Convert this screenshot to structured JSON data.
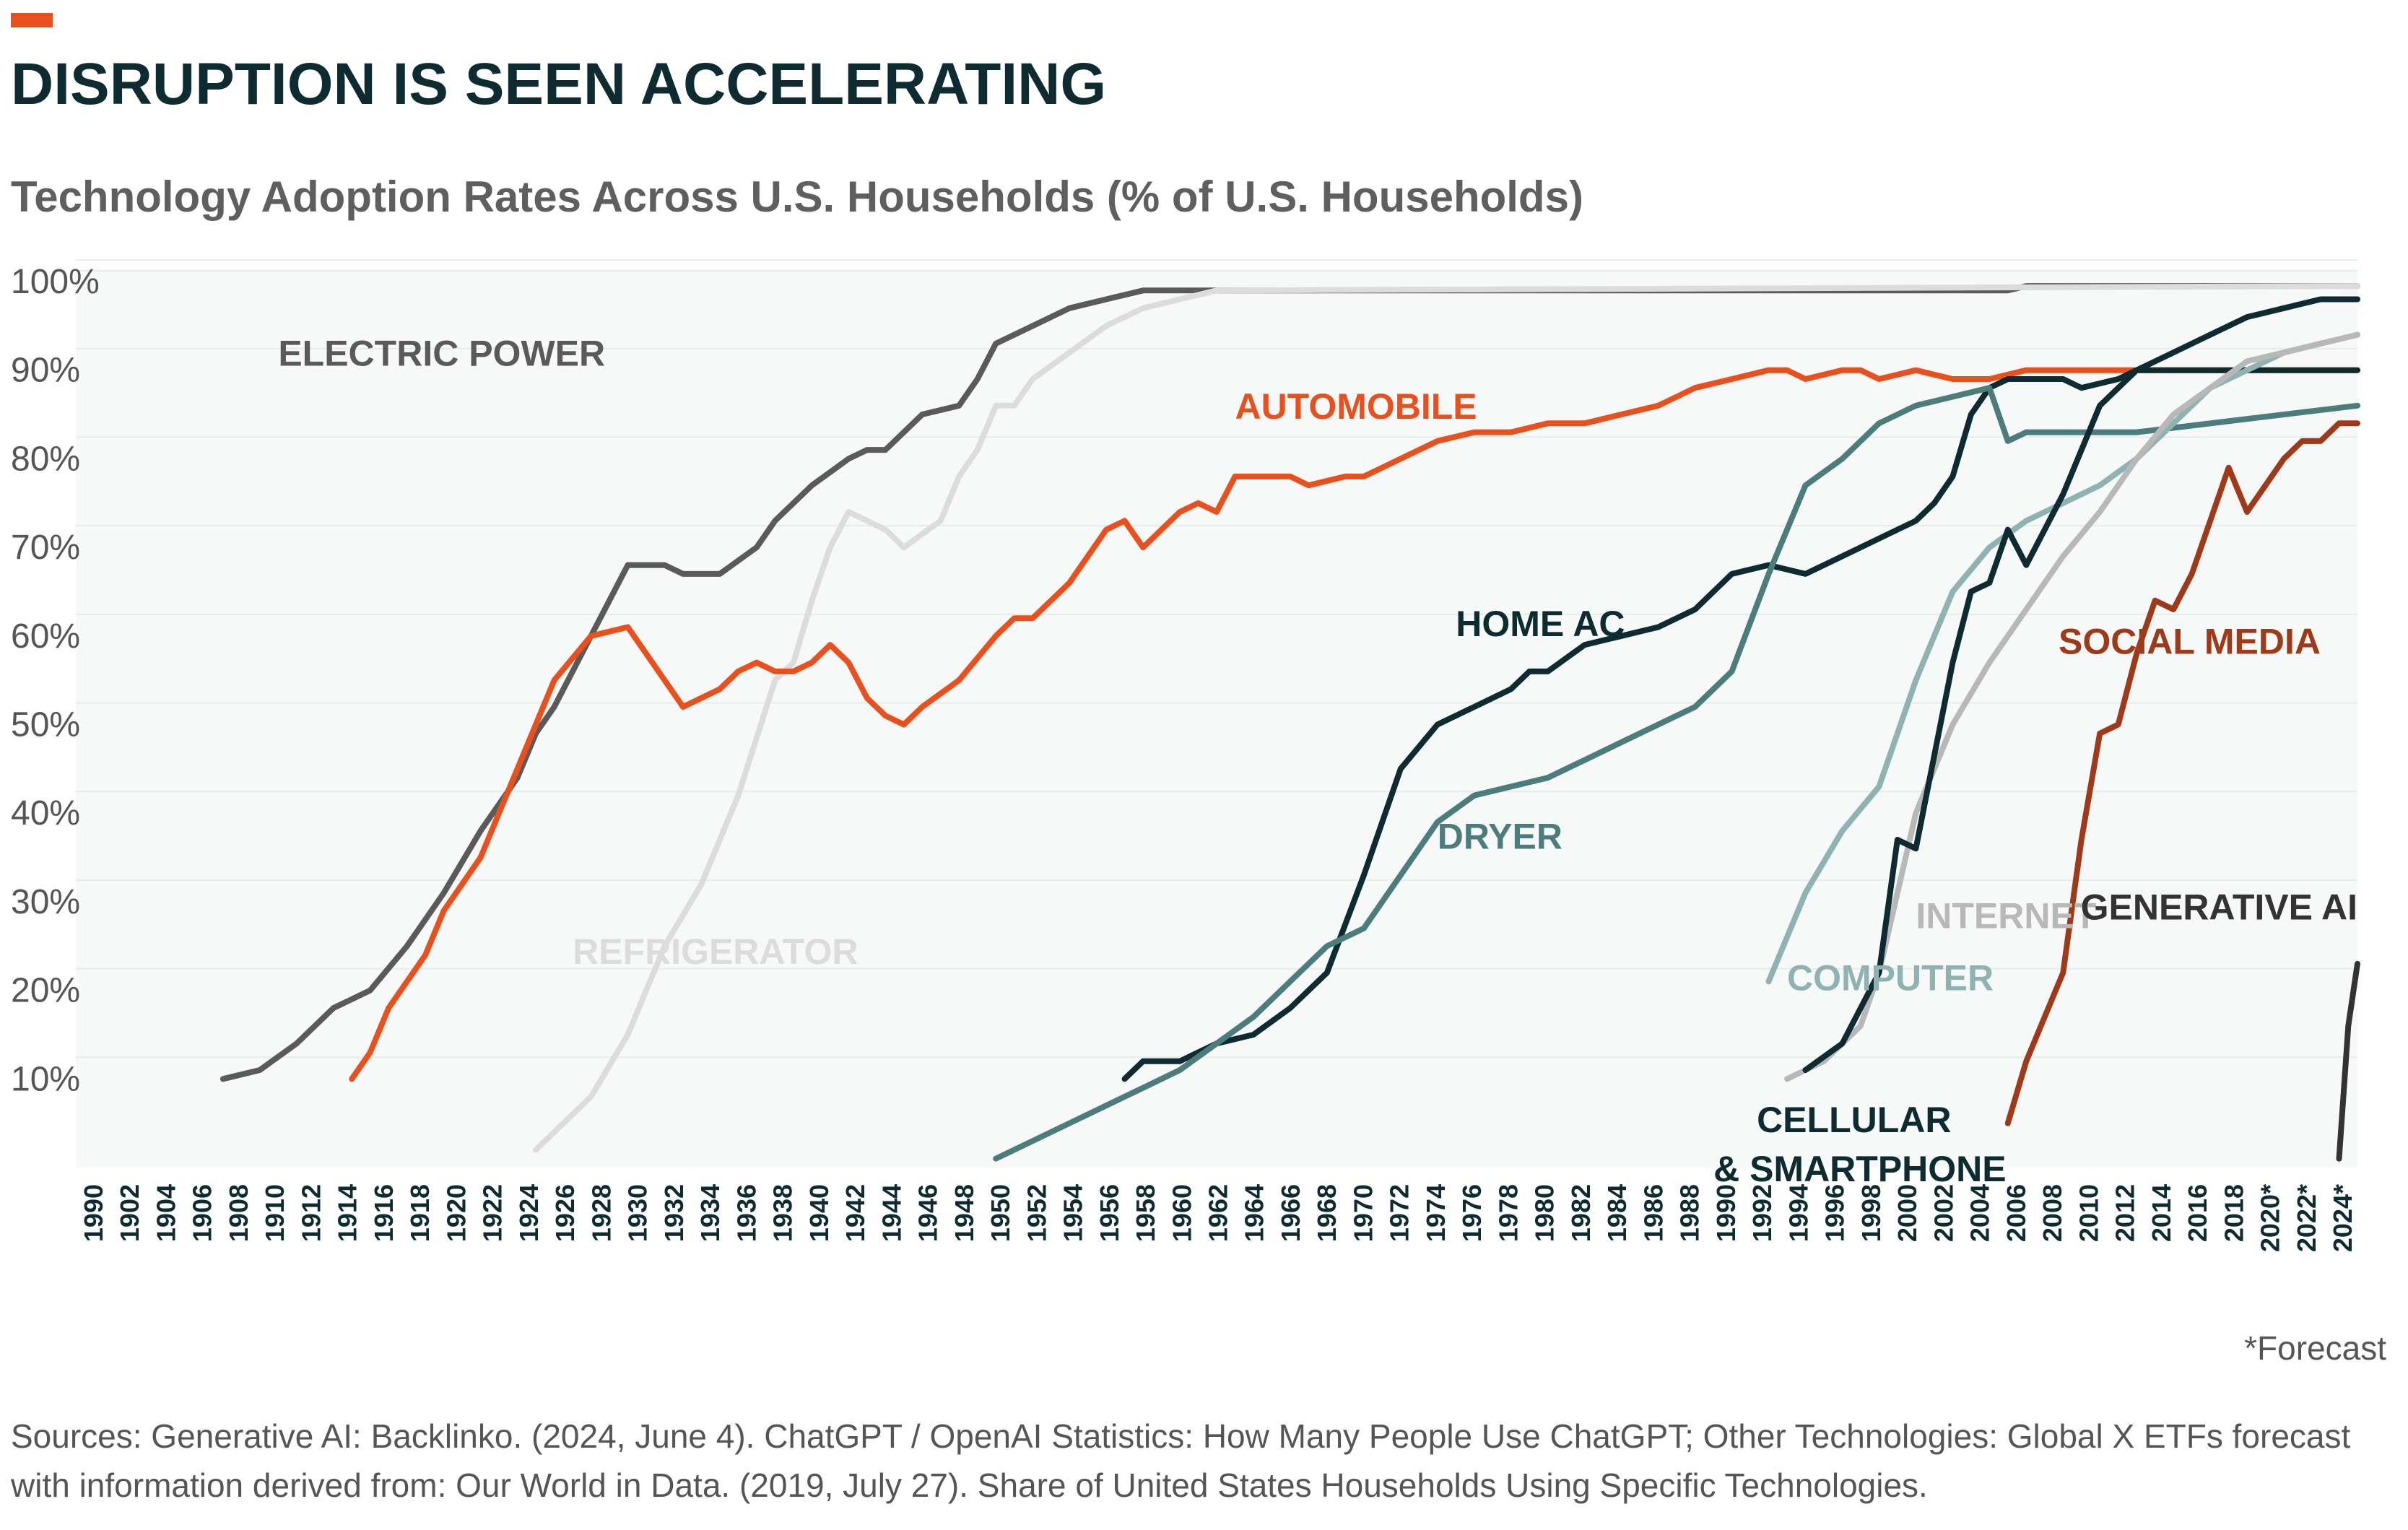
{
  "header": {
    "title": "DISRUPTION IS SEEN ACCELERATING",
    "subtitle": "Technology Adoption Rates Across U.S. Households (% of U.S. Households)"
  },
  "footer": {
    "forecast_note": "*Forecast",
    "sources": "Sources: Generative AI: Backlinko. (2024, June 4). ChatGPT / OpenAI Statistics: How Many People Use ChatGPT; Other Technologies: Global X ETFs forecast with information derived from: Our World in Data. (2019, July 27). Share of United States Households Using Specific Technologies."
  },
  "colors": {
    "accent": "#e8501e",
    "title": "#0d2b30",
    "plot_background": "#f6f9f8",
    "gridline": "#e6ecea"
  },
  "chart_data": {
    "type": "line",
    "title": "Technology Adoption Rates Across U.S. Households (% of U.S. Households)",
    "xlabel": "",
    "ylabel": "",
    "ylim": [
      0,
      100
    ],
    "y_ticks": [
      "10%",
      "20%",
      "30%",
      "40%",
      "50%",
      "60%",
      "70%",
      "80%",
      "90%",
      "100%"
    ],
    "x_ticks": [
      "1990",
      "1902",
      "1904",
      "1906",
      "1908",
      "1910",
      "1912",
      "1914",
      "1916",
      "1918",
      "1920",
      "1922",
      "1924",
      "1926",
      "1928",
      "1930",
      "1932",
      "1934",
      "1936",
      "1938",
      "1940",
      "1942",
      "1944",
      "1946",
      "1948",
      "1950",
      "1952",
      "1954",
      "1956",
      "1958",
      "1960",
      "1962",
      "1964",
      "1966",
      "1968",
      "1970",
      "1972",
      "1974",
      "1976",
      "1978",
      "1980",
      "1982",
      "1984",
      "1986",
      "1988",
      "1990",
      "1992",
      "1994",
      "1996",
      "1998",
      "2000",
      "2002",
      "2004",
      "2006",
      "2008",
      "2010",
      "2012",
      "2014",
      "2016",
      "2018",
      "2020*",
      "2022*",
      "2024*"
    ],
    "grid": true,
    "legend": "inline labels",
    "series": [
      {
        "name": "ELECTRIC POWER",
        "color": "#5a5a5a",
        "label_pos": [
          1911,
          90.5
        ],
        "points": [
          [
            1908,
            10
          ],
          [
            1910,
            11
          ],
          [
            1912,
            14
          ],
          [
            1914,
            18
          ],
          [
            1916,
            20
          ],
          [
            1918,
            25
          ],
          [
            1920,
            31
          ],
          [
            1922,
            38
          ],
          [
            1924,
            44
          ],
          [
            1925,
            49
          ],
          [
            1926,
            52
          ],
          [
            1928,
            60
          ],
          [
            1930,
            68
          ],
          [
            1932,
            68
          ],
          [
            1933,
            67
          ],
          [
            1935,
            67
          ],
          [
            1937,
            70
          ],
          [
            1938,
            73
          ],
          [
            1940,
            77
          ],
          [
            1942,
            80
          ],
          [
            1943,
            81
          ],
          [
            1944,
            81
          ],
          [
            1946,
            85
          ],
          [
            1948,
            86
          ],
          [
            1949,
            89
          ],
          [
            1950,
            93
          ],
          [
            1952,
            95
          ],
          [
            1954,
            97
          ],
          [
            1956,
            98
          ],
          [
            1958,
            99
          ],
          [
            1960,
            99
          ],
          [
            1990,
            99
          ],
          [
            2005,
            99
          ],
          [
            2006,
            99.5
          ],
          [
            2024,
            99.5
          ]
        ]
      },
      {
        "name": "REFRIGERATOR",
        "color": "#dcdcdc",
        "label_pos": [
          1927,
          23
        ],
        "points": [
          [
            1925,
            2
          ],
          [
            1926,
            4
          ],
          [
            1928,
            8
          ],
          [
            1930,
            15
          ],
          [
            1932,
            25
          ],
          [
            1934,
            32
          ],
          [
            1936,
            42
          ],
          [
            1938,
            55
          ],
          [
            1939,
            57
          ],
          [
            1940,
            64
          ],
          [
            1941,
            70
          ],
          [
            1942,
            74
          ],
          [
            1944,
            72
          ],
          [
            1945,
            70
          ],
          [
            1947,
            73
          ],
          [
            1948,
            78
          ],
          [
            1949,
            81
          ],
          [
            1950,
            86
          ],
          [
            1951,
            86
          ],
          [
            1952,
            89
          ],
          [
            1954,
            92
          ],
          [
            1956,
            95
          ],
          [
            1958,
            97
          ],
          [
            1960,
            98
          ],
          [
            1962,
            99
          ],
          [
            2024,
            99.5
          ]
        ]
      },
      {
        "name": "AUTOMOBILE",
        "color": "#e8501e",
        "label_pos": [
          1963,
          84.5
        ],
        "points": [
          [
            1915,
            10
          ],
          [
            1916,
            13
          ],
          [
            1917,
            18
          ],
          [
            1918,
            21
          ],
          [
            1919,
            24
          ],
          [
            1920,
            29
          ],
          [
            1922,
            35
          ],
          [
            1924,
            45
          ],
          [
            1926,
            55
          ],
          [
            1928,
            60
          ],
          [
            1930,
            61
          ],
          [
            1931,
            58
          ],
          [
            1932,
            55
          ],
          [
            1933,
            52
          ],
          [
            1935,
            54
          ],
          [
            1936,
            56
          ],
          [
            1937,
            57
          ],
          [
            1938,
            56
          ],
          [
            1939,
            56
          ],
          [
            1940,
            57
          ],
          [
            1941,
            59
          ],
          [
            1942,
            57
          ],
          [
            1943,
            53
          ],
          [
            1944,
            51
          ],
          [
            1945,
            50
          ],
          [
            1946,
            52
          ],
          [
            1948,
            55
          ],
          [
            1950,
            60
          ],
          [
            1951,
            62
          ],
          [
            1952,
            62
          ],
          [
            1954,
            66
          ],
          [
            1956,
            72
          ],
          [
            1957,
            73
          ],
          [
            1958,
            70
          ],
          [
            1960,
            74
          ],
          [
            1961,
            75
          ],
          [
            1962,
            74
          ],
          [
            1963,
            78
          ],
          [
            1964,
            78
          ],
          [
            1966,
            78
          ],
          [
            1967,
            77
          ],
          [
            1969,
            78
          ],
          [
            1970,
            78
          ],
          [
            1972,
            80
          ],
          [
            1974,
            82
          ],
          [
            1976,
            83
          ],
          [
            1978,
            83
          ],
          [
            1980,
            84
          ],
          [
            1982,
            84
          ],
          [
            1984,
            85
          ],
          [
            1986,
            86
          ],
          [
            1988,
            88
          ],
          [
            1990,
            89
          ],
          [
            1992,
            90
          ],
          [
            1993,
            90
          ],
          [
            1994,
            89
          ],
          [
            1996,
            90
          ],
          [
            1997,
            90
          ],
          [
            1998,
            89
          ],
          [
            2000,
            90
          ],
          [
            2002,
            89
          ],
          [
            2004,
            89
          ],
          [
            2006,
            90
          ],
          [
            2024,
            90
          ]
        ]
      },
      {
        "name": "HOME AC",
        "color": "#0d2b30",
        "label_pos": [
          1975,
          60
        ],
        "points": [
          [
            1957,
            10
          ],
          [
            1958,
            12
          ],
          [
            1960,
            12
          ],
          [
            1962,
            14
          ],
          [
            1964,
            15
          ],
          [
            1966,
            18
          ],
          [
            1968,
            22
          ],
          [
            1970,
            33
          ],
          [
            1972,
            45
          ],
          [
            1974,
            50
          ],
          [
            1976,
            52
          ],
          [
            1978,
            54
          ],
          [
            1979,
            56
          ],
          [
            1980,
            56
          ],
          [
            1982,
            59
          ],
          [
            1984,
            60
          ],
          [
            1986,
            61
          ],
          [
            1988,
            63
          ],
          [
            1990,
            67
          ],
          [
            1992,
            68
          ],
          [
            1994,
            67
          ],
          [
            1996,
            69
          ],
          [
            1998,
            71
          ],
          [
            2000,
            73
          ],
          [
            2001,
            75
          ],
          [
            2002,
            78
          ],
          [
            2003,
            85
          ],
          [
            2004,
            88
          ],
          [
            2005,
            89
          ],
          [
            2006,
            89
          ],
          [
            2008,
            89
          ],
          [
            2009,
            88
          ],
          [
            2011,
            89
          ],
          [
            2012,
            90
          ],
          [
            2024,
            90
          ]
        ]
      },
      {
        "name": "DRYER",
        "color": "#4d7c7c",
        "label_pos": [
          1974,
          36
        ],
        "points": [
          [
            1950,
            1
          ],
          [
            1952,
            3
          ],
          [
            1954,
            5
          ],
          [
            1956,
            7
          ],
          [
            1958,
            9
          ],
          [
            1960,
            11
          ],
          [
            1962,
            14
          ],
          [
            1964,
            17
          ],
          [
            1966,
            21
          ],
          [
            1968,
            25
          ],
          [
            1970,
            27
          ],
          [
            1972,
            33
          ],
          [
            1974,
            39
          ],
          [
            1976,
            42
          ],
          [
            1978,
            43
          ],
          [
            1980,
            44
          ],
          [
            1982,
            46
          ],
          [
            1984,
            48
          ],
          [
            1986,
            50
          ],
          [
            1988,
            52
          ],
          [
            1990,
            56
          ],
          [
            1992,
            67
          ],
          [
            1994,
            77
          ],
          [
            1996,
            80
          ],
          [
            1998,
            84
          ],
          [
            2000,
            86
          ],
          [
            2002,
            87
          ],
          [
            2004,
            88
          ],
          [
            2005,
            82
          ],
          [
            2006,
            83
          ],
          [
            2012,
            83
          ],
          [
            2024,
            86
          ]
        ]
      },
      {
        "name": "COMPUTER",
        "color": "#8fb3b3",
        "label_pos": [
          1993,
          20
        ],
        "points": [
          [
            1992,
            21
          ],
          [
            1994,
            31
          ],
          [
            1996,
            38
          ],
          [
            1998,
            43
          ],
          [
            2000,
            55
          ],
          [
            2002,
            65
          ],
          [
            2004,
            70
          ],
          [
            2006,
            73
          ],
          [
            2008,
            75
          ],
          [
            2010,
            77
          ],
          [
            2012,
            80
          ],
          [
            2014,
            84
          ],
          [
            2016,
            88
          ],
          [
            2018,
            90
          ],
          [
            2020,
            92
          ],
          [
            2022,
            93
          ],
          [
            2024,
            94
          ]
        ]
      },
      {
        "name": "INTERNET",
        "color": "#b8b8b8",
        "label_pos": [
          2000,
          27
        ],
        "points": [
          [
            1993,
            10
          ],
          [
            1995,
            12
          ],
          [
            1997,
            16
          ],
          [
            1998,
            22
          ],
          [
            2000,
            40
          ],
          [
            2002,
            50
          ],
          [
            2004,
            57
          ],
          [
            2006,
            63
          ],
          [
            2008,
            69
          ],
          [
            2010,
            74
          ],
          [
            2012,
            80
          ],
          [
            2014,
            85
          ],
          [
            2016,
            88
          ],
          [
            2018,
            91
          ],
          [
            2020,
            92
          ],
          [
            2022,
            93
          ],
          [
            2024,
            94
          ]
        ]
      },
      {
        "name": "CELLULAR & SMARTPHONE",
        "color": "#0d2b30",
        "label_pos": [
          1989,
          4
        ],
        "points": [
          [
            1994,
            11
          ],
          [
            1996,
            14
          ],
          [
            1998,
            22
          ],
          [
            1999,
            37
          ],
          [
            2000,
            36
          ],
          [
            2002,
            57
          ],
          [
            2003,
            65
          ],
          [
            2004,
            66
          ],
          [
            2005,
            72
          ],
          [
            2006,
            68
          ],
          [
            2008,
            76
          ],
          [
            2010,
            86
          ],
          [
            2012,
            90
          ],
          [
            2014,
            92
          ],
          [
            2016,
            94
          ],
          [
            2018,
            96
          ],
          [
            2020,
            97
          ],
          [
            2022,
            98
          ],
          [
            2024,
            98
          ]
        ]
      },
      {
        "name": "SOCIAL MEDIA",
        "color": "#9e3a1a",
        "label_pos": [
          2022,
          58
        ],
        "points": [
          [
            2005,
            5
          ],
          [
            2006,
            12
          ],
          [
            2007,
            17
          ],
          [
            2008,
            22
          ],
          [
            2009,
            37
          ],
          [
            2010,
            49
          ],
          [
            2011,
            50
          ],
          [
            2012,
            58
          ],
          [
            2013,
            64
          ],
          [
            2014,
            63
          ],
          [
            2015,
            67
          ],
          [
            2016,
            73
          ],
          [
            2017,
            79
          ],
          [
            2018,
            74
          ],
          [
            2019,
            77
          ],
          [
            2020,
            80
          ],
          [
            2021,
            82
          ],
          [
            2022,
            82
          ],
          [
            2023,
            84
          ],
          [
            2024,
            84
          ]
        ]
      },
      {
        "name": "GENERATIVE AI",
        "color": "#333333",
        "label_pos": [
          2024,
          28
        ],
        "points": [
          [
            2023,
            1
          ],
          [
            2023.5,
            16
          ],
          [
            2024,
            23
          ]
        ]
      }
    ]
  }
}
